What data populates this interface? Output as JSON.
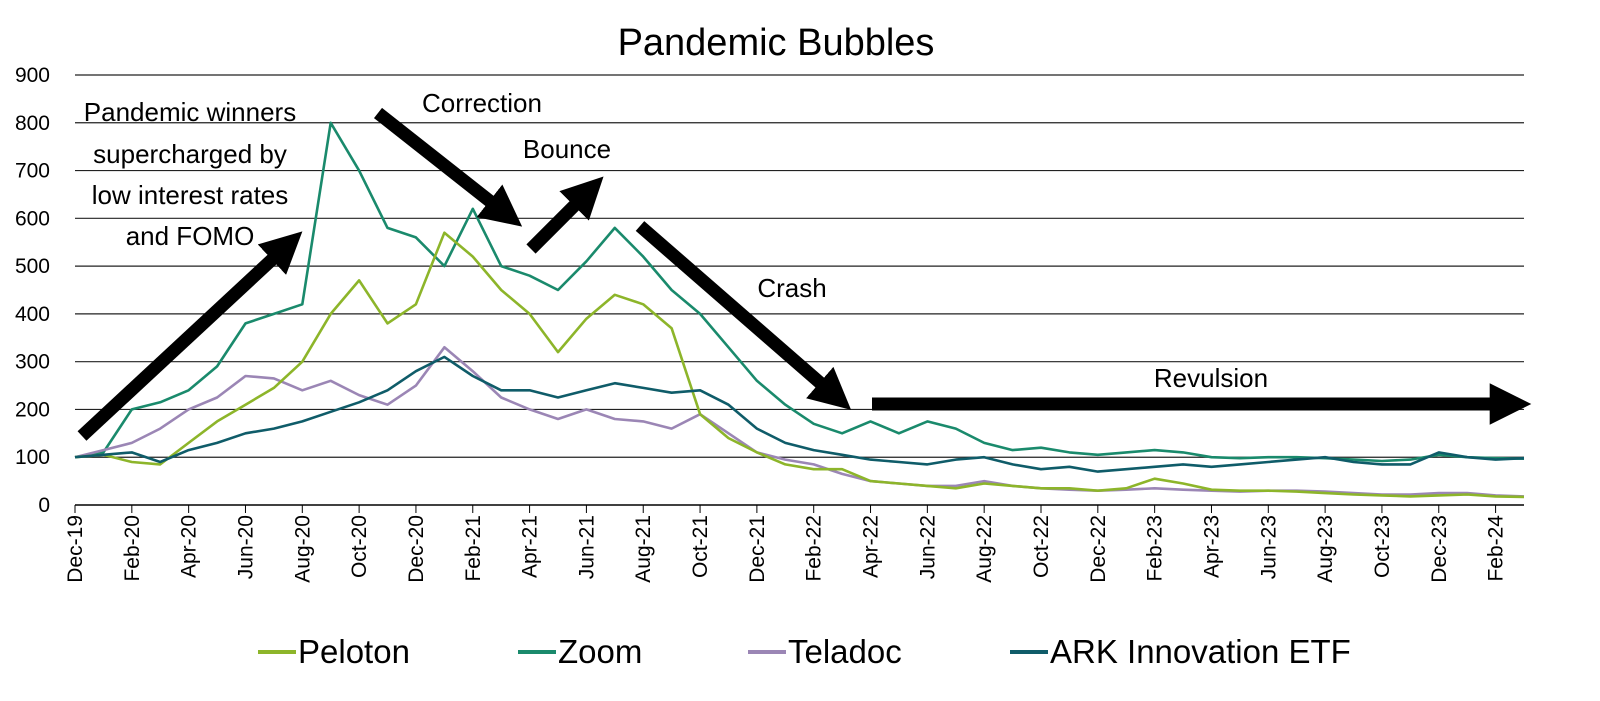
{
  "chart_data": {
    "type": "line",
    "title": "Pandemic Bubbles",
    "xlabel": "",
    "ylabel": "",
    "ylim": [
      0,
      900
    ],
    "yticks": [
      0,
      100,
      200,
      300,
      400,
      500,
      600,
      700,
      800,
      900
    ],
    "grid": "horizontal",
    "legend_position": "bottom",
    "x_tick_labels": [
      "Dec-19",
      "Feb-20",
      "Apr-20",
      "Jun-20",
      "Aug-20",
      "Oct-20",
      "Dec-20",
      "Feb-21",
      "Apr-21",
      "Jun-21",
      "Aug-21",
      "Oct-21",
      "Dec-21",
      "Feb-22",
      "Apr-22",
      "Jun-22",
      "Aug-22",
      "Oct-22",
      "Dec-22",
      "Feb-23",
      "Apr-23",
      "Jun-23",
      "Aug-23",
      "Oct-23",
      "Dec-23",
      "Feb-24"
    ],
    "x": [
      "Dec-19",
      "Jan-20",
      "Feb-20",
      "Mar-20",
      "Apr-20",
      "May-20",
      "Jun-20",
      "Jul-20",
      "Aug-20",
      "Sep-20",
      "Oct-20",
      "Nov-20",
      "Dec-20",
      "Jan-21",
      "Feb-21",
      "Mar-21",
      "Apr-21",
      "May-21",
      "Jun-21",
      "Jul-21",
      "Aug-21",
      "Sep-21",
      "Oct-21",
      "Nov-21",
      "Dec-21",
      "Jan-22",
      "Feb-22",
      "Mar-22",
      "Apr-22",
      "May-22",
      "Jun-22",
      "Jul-22",
      "Aug-22",
      "Sep-22",
      "Oct-22",
      "Nov-22",
      "Dec-22",
      "Jan-23",
      "Feb-23",
      "Mar-23",
      "Apr-23",
      "May-23",
      "Jun-23",
      "Jul-23",
      "Aug-23",
      "Sep-23",
      "Oct-23",
      "Nov-23",
      "Dec-23",
      "Jan-24",
      "Feb-24",
      "Mar-24"
    ],
    "series": [
      {
        "name": "Peloton",
        "color": "#8db52a",
        "values": [
          100,
          105,
          90,
          85,
          130,
          175,
          210,
          245,
          300,
          400,
          470,
          380,
          420,
          570,
          520,
          450,
          400,
          320,
          390,
          440,
          420,
          370,
          190,
          140,
          110,
          85,
          75,
          75,
          50,
          45,
          40,
          35,
          45,
          40,
          35,
          35,
          30,
          35,
          55,
          45,
          32,
          30,
          30,
          28,
          25,
          22,
          20,
          18,
          20,
          22,
          18,
          17
        ]
      },
      {
        "name": "Zoom",
        "color": "#1a8a6c",
        "values": [
          100,
          110,
          200,
          215,
          240,
          290,
          380,
          400,
          420,
          800,
          700,
          580,
          560,
          500,
          620,
          500,
          480,
          450,
          510,
          580,
          520,
          450,
          400,
          330,
          260,
          210,
          170,
          150,
          175,
          150,
          175,
          160,
          130,
          115,
          120,
          110,
          105,
          110,
          115,
          110,
          100,
          98,
          100,
          100,
          98,
          95,
          92,
          95,
          105,
          100,
          98,
          97
        ]
      },
      {
        "name": "Teladoc",
        "color": "#9b86b5",
        "values": [
          100,
          115,
          130,
          160,
          200,
          225,
          270,
          265,
          240,
          260,
          230,
          210,
          250,
          330,
          280,
          225,
          200,
          180,
          200,
          180,
          175,
          160,
          190,
          150,
          110,
          95,
          85,
          65,
          50,
          45,
          40,
          40,
          50,
          40,
          35,
          32,
          30,
          32,
          35,
          32,
          30,
          28,
          30,
          30,
          28,
          25,
          22,
          22,
          25,
          25,
          20,
          18
        ]
      },
      {
        "name": "ARK Innovation ETF",
        "color": "#0f5c69",
        "values": [
          100,
          105,
          110,
          90,
          115,
          130,
          150,
          160,
          175,
          195,
          215,
          240,
          280,
          310,
          270,
          240,
          240,
          225,
          240,
          255,
          245,
          235,
          240,
          210,
          160,
          130,
          115,
          105,
          95,
          90,
          85,
          95,
          100,
          85,
          75,
          80,
          70,
          75,
          80,
          85,
          80,
          85,
          90,
          95,
          100,
          90,
          85,
          85,
          110,
          100,
          95,
          98
        ]
      }
    ],
    "annotations": [
      {
        "text_lines": [
          "Pandemic winners",
          "supercharged by",
          "low interest rates",
          "and FOMO"
        ]
      },
      {
        "text_lines": [
          "Correction"
        ]
      },
      {
        "text_lines": [
          "Bounce"
        ]
      },
      {
        "text_lines": [
          "Crash"
        ]
      },
      {
        "text_lines": [
          "Revulsion"
        ]
      }
    ]
  }
}
